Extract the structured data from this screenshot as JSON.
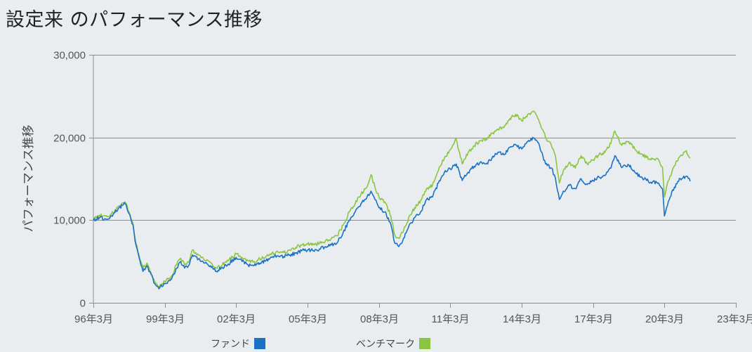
{
  "page_title": "設定来 のパフォーマンス推移",
  "colors": {
    "fund": "#1a72c4",
    "benchmark": "#8bc53f",
    "grid": "#8d8d8d",
    "background": "#e9edf0"
  },
  "chart_data": {
    "type": "line",
    "title": "設定来 のパフォーマンス推移",
    "ylabel": "パフォーマンス推移",
    "xlabel": "",
    "ylim": [
      0,
      30000
    ],
    "xlim": [
      "1996-03",
      "2023-03"
    ],
    "yticks": [
      "0",
      "10,000",
      "20,000",
      "30,000"
    ],
    "yticks_values": [
      0,
      10000,
      20000,
      30000
    ],
    "xticks": [
      "96年3月",
      "99年3月",
      "02年3月",
      "05年3月",
      "08年3月",
      "11年3月",
      "14年3月",
      "17年3月",
      "20年3月",
      "23年3月"
    ],
    "xticks_values": [
      "1996-03",
      "1999-03",
      "2002-03",
      "2005-03",
      "2008-03",
      "2011-03",
      "2014-03",
      "2017-03",
      "2020-03",
      "2023-03"
    ],
    "grid": true,
    "legend_position": "bottom",
    "series": [
      {
        "name": "ファンド",
        "color": "#1a72c4",
        "points": [
          [
            "1996-03",
            10000
          ],
          [
            "1996-06",
            10300
          ],
          [
            "1996-10",
            10100
          ],
          [
            "1997-01",
            10700
          ],
          [
            "1997-04",
            11500
          ],
          [
            "1997-07",
            12000
          ],
          [
            "1997-09",
            10800
          ],
          [
            "1997-11",
            9400
          ],
          [
            "1997-12",
            7500
          ],
          [
            "1998-02",
            5500
          ],
          [
            "1998-04",
            3800
          ],
          [
            "1998-06",
            4500
          ],
          [
            "1998-08",
            3500
          ],
          [
            "1998-10",
            2300
          ],
          [
            "1998-12",
            1700
          ],
          [
            "1999-03",
            2300
          ],
          [
            "1999-06",
            2800
          ],
          [
            "1999-09",
            4200
          ],
          [
            "1999-11",
            5000
          ],
          [
            "2000-01",
            4200
          ],
          [
            "2000-03",
            4500
          ],
          [
            "2000-05",
            5800
          ],
          [
            "2000-08",
            5300
          ],
          [
            "2000-11",
            4800
          ],
          [
            "2001-02",
            4500
          ],
          [
            "2001-05",
            3800
          ],
          [
            "2001-08",
            4300
          ],
          [
            "2001-11",
            4700
          ],
          [
            "2002-03",
            5500
          ],
          [
            "2002-06",
            5000
          ],
          [
            "2002-09",
            4600
          ],
          [
            "2002-12",
            4500
          ],
          [
            "2003-03",
            4800
          ],
          [
            "2003-06",
            5100
          ],
          [
            "2003-09",
            5500
          ],
          [
            "2003-12",
            5700
          ],
          [
            "2004-03",
            5600
          ],
          [
            "2004-06",
            5800
          ],
          [
            "2004-09",
            6000
          ],
          [
            "2004-12",
            6300
          ],
          [
            "2005-03",
            6400
          ],
          [
            "2005-06",
            6300
          ],
          [
            "2005-09",
            6500
          ],
          [
            "2005-12",
            6800
          ],
          [
            "2006-03",
            7000
          ],
          [
            "2006-06",
            7300
          ],
          [
            "2006-09",
            8500
          ],
          [
            "2006-12",
            10000
          ],
          [
            "2007-03",
            11000
          ],
          [
            "2007-06",
            12000
          ],
          [
            "2007-09",
            12800
          ],
          [
            "2007-11",
            13500
          ],
          [
            "2008-01",
            12500
          ],
          [
            "2008-03",
            11500
          ],
          [
            "2008-06",
            11000
          ],
          [
            "2008-09",
            9500
          ],
          [
            "2008-11",
            7200
          ],
          [
            "2009-01",
            6800
          ],
          [
            "2009-03",
            7500
          ],
          [
            "2009-06",
            9200
          ],
          [
            "2009-09",
            10300
          ],
          [
            "2009-12",
            11000
          ],
          [
            "2010-03",
            12500
          ],
          [
            "2010-06",
            12800
          ],
          [
            "2010-09",
            14500
          ],
          [
            "2010-12",
            15800
          ],
          [
            "2011-03",
            16200
          ],
          [
            "2011-06",
            16800
          ],
          [
            "2011-09",
            14800
          ],
          [
            "2011-12",
            15800
          ],
          [
            "2012-03",
            16500
          ],
          [
            "2012-06",
            17000
          ],
          [
            "2012-09",
            16800
          ],
          [
            "2012-12",
            17500
          ],
          [
            "2013-03",
            18200
          ],
          [
            "2013-06",
            17900
          ],
          [
            "2013-09",
            18800
          ],
          [
            "2013-12",
            19100
          ],
          [
            "2014-03",
            18600
          ],
          [
            "2014-06",
            19500
          ],
          [
            "2014-09",
            19900
          ],
          [
            "2014-12",
            19000
          ],
          [
            "2015-03",
            16800
          ],
          [
            "2015-06",
            16300
          ],
          [
            "2015-08",
            15100
          ],
          [
            "2015-10",
            12500
          ],
          [
            "2015-12",
            13500
          ],
          [
            "2016-03",
            14200
          ],
          [
            "2016-06",
            13800
          ],
          [
            "2016-09",
            15000
          ],
          [
            "2016-12",
            14300
          ],
          [
            "2017-03",
            14800
          ],
          [
            "2017-06",
            15200
          ],
          [
            "2017-09",
            15400
          ],
          [
            "2017-12",
            16300
          ],
          [
            "2018-02",
            17800
          ],
          [
            "2018-05",
            16500
          ],
          [
            "2018-09",
            16700
          ],
          [
            "2018-12",
            15800
          ],
          [
            "2019-03",
            15200
          ],
          [
            "2019-06",
            14800
          ],
          [
            "2019-09",
            14600
          ],
          [
            "2019-12",
            14500
          ],
          [
            "2020-02",
            13800
          ],
          [
            "2020-03",
            10500
          ],
          [
            "2020-05",
            12300
          ],
          [
            "2020-08",
            14000
          ],
          [
            "2020-11",
            15000
          ],
          [
            "2021-02",
            15300
          ],
          [
            "2021-04",
            14700
          ]
        ]
      },
      {
        "name": "ベンチマーク",
        "color": "#8bc53f",
        "points": [
          [
            "1996-03",
            10200
          ],
          [
            "1996-06",
            10600
          ],
          [
            "1996-10",
            10400
          ],
          [
            "1997-01",
            10900
          ],
          [
            "1997-04",
            11700
          ],
          [
            "1997-07",
            12200
          ],
          [
            "1997-09",
            11000
          ],
          [
            "1997-11",
            9600
          ],
          [
            "1997-12",
            7800
          ],
          [
            "1998-02",
            5800
          ],
          [
            "1998-04",
            4200
          ],
          [
            "1998-06",
            4800
          ],
          [
            "1998-08",
            3700
          ],
          [
            "1998-10",
            2500
          ],
          [
            "1998-12",
            1900
          ],
          [
            "1999-03",
            2600
          ],
          [
            "1999-06",
            3100
          ],
          [
            "1999-09",
            4600
          ],
          [
            "1999-11",
            5400
          ],
          [
            "2000-01",
            4600
          ],
          [
            "2000-03",
            4900
          ],
          [
            "2000-05",
            6400
          ],
          [
            "2000-08",
            5800
          ],
          [
            "2000-11",
            5200
          ],
          [
            "2001-02",
            4900
          ],
          [
            "2001-05",
            4200
          ],
          [
            "2001-08",
            4600
          ],
          [
            "2001-11",
            5100
          ],
          [
            "2002-03",
            5900
          ],
          [
            "2002-06",
            5500
          ],
          [
            "2002-09",
            5100
          ],
          [
            "2002-12",
            5000
          ],
          [
            "2003-03",
            5300
          ],
          [
            "2003-06",
            5600
          ],
          [
            "2003-09",
            6000
          ],
          [
            "2003-12",
            6200
          ],
          [
            "2004-03",
            6100
          ],
          [
            "2004-06",
            6400
          ],
          [
            "2004-09",
            6700
          ],
          [
            "2004-12",
            7000
          ],
          [
            "2005-03",
            7100
          ],
          [
            "2005-06",
            7000
          ],
          [
            "2005-09",
            7200
          ],
          [
            "2005-12",
            7500
          ],
          [
            "2006-03",
            7800
          ],
          [
            "2006-06",
            8100
          ],
          [
            "2006-09",
            9400
          ],
          [
            "2006-12",
            11000
          ],
          [
            "2007-03",
            12000
          ],
          [
            "2007-06",
            13200
          ],
          [
            "2007-09",
            14000
          ],
          [
            "2007-11",
            15500
          ],
          [
            "2008-01",
            14000
          ],
          [
            "2008-03",
            12800
          ],
          [
            "2008-06",
            12200
          ],
          [
            "2008-09",
            10500
          ],
          [
            "2008-11",
            8200
          ],
          [
            "2009-01",
            7800
          ],
          [
            "2009-03",
            8500
          ],
          [
            "2009-06",
            10300
          ],
          [
            "2009-09",
            11500
          ],
          [
            "2009-12",
            12400
          ],
          [
            "2010-03",
            13800
          ],
          [
            "2010-06",
            14200
          ],
          [
            "2010-09",
            16000
          ],
          [
            "2010-12",
            17500
          ],
          [
            "2011-03",
            18500
          ],
          [
            "2011-06",
            19800
          ],
          [
            "2011-09",
            16800
          ],
          [
            "2011-12",
            18200
          ],
          [
            "2012-03",
            19000
          ],
          [
            "2012-06",
            19600
          ],
          [
            "2012-09",
            19800
          ],
          [
            "2012-12",
            20500
          ],
          [
            "2013-03",
            21000
          ],
          [
            "2013-06",
            21200
          ],
          [
            "2013-09",
            22300
          ],
          [
            "2013-12",
            22800
          ],
          [
            "2014-03",
            22000
          ],
          [
            "2014-06",
            22800
          ],
          [
            "2014-09",
            23200
          ],
          [
            "2014-12",
            21800
          ],
          [
            "2015-03",
            20000
          ],
          [
            "2015-06",
            19000
          ],
          [
            "2015-08",
            17800
          ],
          [
            "2015-10",
            14500
          ],
          [
            "2015-12",
            16000
          ],
          [
            "2016-03",
            17000
          ],
          [
            "2016-06",
            16300
          ],
          [
            "2016-09",
            17800
          ],
          [
            "2016-12",
            16800
          ],
          [
            "2017-03",
            17300
          ],
          [
            "2017-06",
            17900
          ],
          [
            "2017-09",
            18200
          ],
          [
            "2017-12",
            19300
          ],
          [
            "2018-02",
            20800
          ],
          [
            "2018-05",
            19200
          ],
          [
            "2018-09",
            19500
          ],
          [
            "2018-12",
            18600
          ],
          [
            "2019-03",
            18000
          ],
          [
            "2019-06",
            17600
          ],
          [
            "2019-09",
            17400
          ],
          [
            "2019-12",
            17300
          ],
          [
            "2020-02",
            16400
          ],
          [
            "2020-03",
            12800
          ],
          [
            "2020-05",
            14800
          ],
          [
            "2020-08",
            16600
          ],
          [
            "2020-11",
            17800
          ],
          [
            "2021-02",
            18400
          ],
          [
            "2021-04",
            17500
          ]
        ]
      }
    ]
  }
}
